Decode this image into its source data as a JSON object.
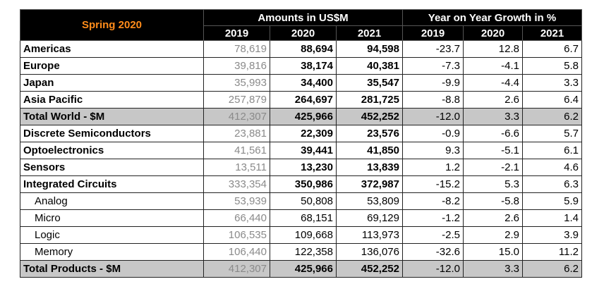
{
  "header": {
    "corner_label": "Spring 2020",
    "amounts_group": "Amounts in US$M",
    "growth_group": "Year on Year Growth in %",
    "years": [
      "2019",
      "2020",
      "2021"
    ],
    "growth_years": [
      "2019",
      "2020",
      "2021"
    ]
  },
  "rows": [
    {
      "label": "Americas",
      "a2019": "78,619",
      "a2020": "88,694",
      "a2021": "94,598",
      "g2019": "-23.7",
      "g2020": "12.8",
      "g2021": "6.7"
    },
    {
      "label": "Europe",
      "a2019": "39,816",
      "a2020": "38,174",
      "a2021": "40,381",
      "g2019": "-7.3",
      "g2020": "-4.1",
      "g2021": "5.8"
    },
    {
      "label": "Japan",
      "a2019": "35,993",
      "a2020": "34,400",
      "a2021": "35,547",
      "g2019": "-9.9",
      "g2020": "-4.4",
      "g2021": "3.3"
    },
    {
      "label": "Asia Pacific",
      "a2019": "257,879",
      "a2020": "264,697",
      "a2021": "281,725",
      "g2019": "-8.8",
      "g2020": "2.6",
      "g2021": "6.4"
    },
    {
      "label": "Total World - $M",
      "a2019": "412,307",
      "a2020": "425,966",
      "a2021": "452,252",
      "g2019": "-12.0",
      "g2020": "3.3",
      "g2021": "6.2"
    },
    {
      "label": "Discrete Semiconductors",
      "a2019": "23,881",
      "a2020": "22,309",
      "a2021": "23,576",
      "g2019": "-0.9",
      "g2020": "-6.6",
      "g2021": "5.7"
    },
    {
      "label": "Optoelectronics",
      "a2019": "41,561",
      "a2020": "39,441",
      "a2021": "41,850",
      "g2019": "9.3",
      "g2020": "-5.1",
      "g2021": "6.1"
    },
    {
      "label": "Sensors",
      "a2019": "13,511",
      "a2020": "13,230",
      "a2021": "13,839",
      "g2019": "1.2",
      "g2020": "-2.1",
      "g2021": "4.6"
    },
    {
      "label": "Integrated Circuits",
      "a2019": "333,354",
      "a2020": "350,986",
      "a2021": "372,987",
      "g2019": "-15.2",
      "g2020": "5.3",
      "g2021": "6.3"
    },
    {
      "label": "Analog",
      "a2019": "53,939",
      "a2020": "50,808",
      "a2021": "53,809",
      "g2019": "-8.2",
      "g2020": "-5.8",
      "g2021": "5.9"
    },
    {
      "label": "Micro",
      "a2019": "66,440",
      "a2020": "68,151",
      "a2021": "69,129",
      "g2019": "-1.2",
      "g2020": "2.6",
      "g2021": "1.4"
    },
    {
      "label": "Logic",
      "a2019": "106,535",
      "a2020": "109,668",
      "a2021": "113,973",
      "g2019": "-2.5",
      "g2020": "2.9",
      "g2021": "3.9"
    },
    {
      "label": "Memory",
      "a2019": "106,440",
      "a2020": "122,358",
      "a2021": "136,076",
      "g2019": "-32.6",
      "g2020": "15.0",
      "g2021": "11.2"
    },
    {
      "label": "Total Products - $M",
      "a2019": "412,307",
      "a2020": "425,966",
      "a2021": "452,252",
      "g2019": "-12.0",
      "g2020": "3.3",
      "g2021": "6.2"
    }
  ],
  "colors": {
    "header_bg": "#000000",
    "header_text": "#ffffff",
    "corner_text": "#ff8c1a",
    "total_row_bg": "#c7c7c7",
    "year2019_text": "#8a8a8a"
  }
}
